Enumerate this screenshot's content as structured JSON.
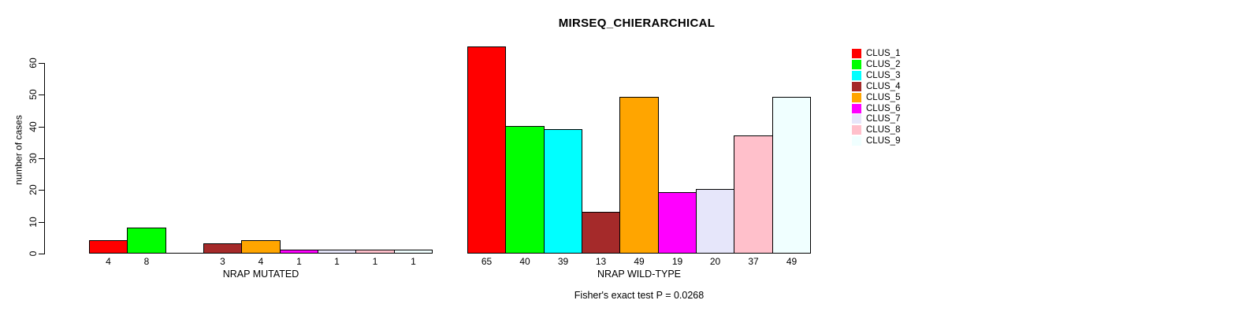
{
  "chart_data": {
    "type": "bar",
    "title": "MIRSEQ_CHIERARCHICAL",
    "ylabel": "number of cases",
    "ylim": [
      0,
      65
    ],
    "yticks": [
      0,
      10,
      20,
      30,
      40,
      50,
      60
    ],
    "grid": false,
    "legend_position": "right",
    "clusters": [
      "CLUS_1",
      "CLUS_2",
      "CLUS_3",
      "CLUS_4",
      "CLUS_5",
      "CLUS_6",
      "CLUS_7",
      "CLUS_8",
      "CLUS_9"
    ],
    "cluster_colors": [
      "#FF0000",
      "#00FF00",
      "#00FFFF",
      "#A52A2A",
      "#FFA500",
      "#FF00FF",
      "#E6E6FA",
      "#FFC0CB",
      "#F0FFFF"
    ],
    "bar_border_color": "#000000",
    "series": [
      {
        "name": "NRAP MUTATED",
        "values": [
          4,
          8,
          0,
          3,
          4,
          1,
          1,
          1,
          1
        ]
      },
      {
        "name": "NRAP WILD-TYPE",
        "values": [
          65,
          40,
          39,
          13,
          49,
          19,
          20,
          37,
          49
        ]
      }
    ],
    "annotation": "Fisher's exact test P = 0.0268"
  }
}
